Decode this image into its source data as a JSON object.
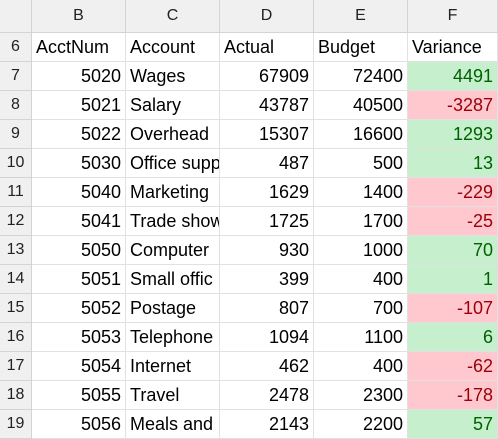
{
  "columns": [
    "B",
    "C",
    "D",
    "E",
    "F"
  ],
  "header_row": {
    "row_number": "6",
    "cells": [
      "AcctNum",
      "Account",
      "Actual",
      "Budget",
      "Variance"
    ]
  },
  "rows": [
    {
      "row_number": "7",
      "acct": "5020",
      "account": "Wages",
      "actual": "67909",
      "budget": "72400",
      "variance": "4491",
      "status": "pos"
    },
    {
      "row_number": "8",
      "acct": "5021",
      "account": "Salary",
      "actual": "43787",
      "budget": "40500",
      "variance": "-3287",
      "status": "neg"
    },
    {
      "row_number": "9",
      "acct": "5022",
      "account": "Overhead",
      "actual": "15307",
      "budget": "16600",
      "variance": "1293",
      "status": "pos"
    },
    {
      "row_number": "10",
      "acct": "5030",
      "account": "Office supp",
      "actual": "487",
      "budget": "500",
      "variance": "13",
      "status": "pos"
    },
    {
      "row_number": "11",
      "acct": "5040",
      "account": "Marketing",
      "actual": "1629",
      "budget": "1400",
      "variance": "-229",
      "status": "neg"
    },
    {
      "row_number": "12",
      "acct": "5041",
      "account": "Trade show",
      "actual": "1725",
      "budget": "1700",
      "variance": "-25",
      "status": "neg"
    },
    {
      "row_number": "13",
      "acct": "5050",
      "account": "Computer",
      "actual": "930",
      "budget": "1000",
      "variance": "70",
      "status": "pos"
    },
    {
      "row_number": "14",
      "acct": "5051",
      "account": "Small offic",
      "actual": "399",
      "budget": "400",
      "variance": "1",
      "status": "pos"
    },
    {
      "row_number": "15",
      "acct": "5052",
      "account": "Postage",
      "actual": "807",
      "budget": "700",
      "variance": "-107",
      "status": "neg"
    },
    {
      "row_number": "16",
      "acct": "5053",
      "account": "Telephone",
      "actual": "1094",
      "budget": "1100",
      "variance": "6",
      "status": "pos"
    },
    {
      "row_number": "17",
      "acct": "5054",
      "account": "Internet",
      "actual": "462",
      "budget": "400",
      "variance": "-62",
      "status": "neg"
    },
    {
      "row_number": "18",
      "acct": "5055",
      "account": "Travel",
      "actual": "2478",
      "budget": "2300",
      "variance": "-178",
      "status": "neg"
    },
    {
      "row_number": "19",
      "acct": "5056",
      "account": "Meals and",
      "actual": "2143",
      "budget": "2200",
      "variance": "57",
      "status": "pos"
    }
  ],
  "colors": {
    "positive_fill": "#c6efce",
    "positive_text": "#006100",
    "negative_fill": "#ffc7ce",
    "negative_text": "#9c0006"
  }
}
